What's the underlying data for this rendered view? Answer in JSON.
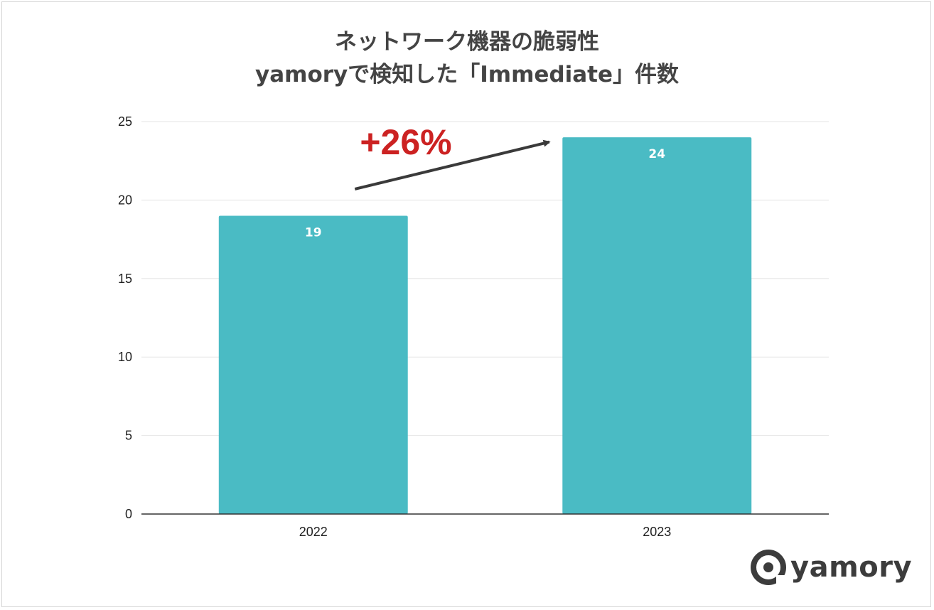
{
  "chart_data": {
    "type": "bar",
    "title": [
      "ネットワーク機器の脆弱性",
      "yamoryで検知した「Immediate」件数"
    ],
    "categories": [
      "2022",
      "2023"
    ],
    "values": [
      19,
      24
    ],
    "value_labels": [
      "19",
      "24"
    ],
    "xlabel": "",
    "ylabel": "",
    "ylim": [
      0,
      25
    ],
    "yticks": [
      0,
      5,
      10,
      15,
      20,
      25
    ],
    "grid": true,
    "legend": "none",
    "bar_color": "#4abbc4",
    "annotation": {
      "text": "+26%",
      "color": "#cc2222",
      "arrow_color": "#3a3a3a",
      "arrow_from": {
        "category": "2022",
        "value": 20.7
      },
      "arrow_to": {
        "category": "2023",
        "value": 23.7
      }
    }
  },
  "logo": {
    "text": "yamory",
    "icon": "yamory-logo-icon",
    "color": "#3c3c3c"
  }
}
